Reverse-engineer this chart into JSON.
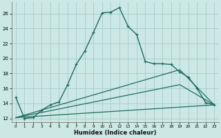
{
  "xlabel": "Humidex (Indice chaleur)",
  "background_color": "#cce8e4",
  "grid_color": "#aacfcb",
  "line_color": "#1e6b60",
  "xlim": [
    -0.5,
    23.5
  ],
  "ylim": [
    11.5,
    27.5
  ],
  "yticks": [
    12,
    14,
    16,
    18,
    20,
    22,
    24,
    26
  ],
  "xticks": [
    0,
    1,
    2,
    3,
    4,
    5,
    6,
    7,
    8,
    9,
    10,
    11,
    12,
    13,
    14,
    15,
    16,
    17,
    18,
    19,
    20,
    21,
    22,
    23
  ],
  "main_line": {
    "x": [
      0,
      1,
      2,
      3,
      4,
      5,
      6,
      7,
      8,
      9,
      10,
      11,
      12,
      13,
      14,
      15,
      16,
      17,
      18,
      19,
      20,
      21,
      22,
      23
    ],
    "y": [
      14.8,
      12.0,
      12.1,
      13.1,
      13.8,
      14.2,
      16.5,
      19.2,
      21.0,
      23.5,
      26.1,
      26.2,
      26.8,
      24.3,
      23.2,
      19.6,
      19.3,
      19.3,
      19.2,
      18.2,
      17.5,
      16.0,
      14.1,
      13.8
    ]
  },
  "line_top": {
    "x": [
      0,
      19,
      23
    ],
    "y": [
      12.1,
      18.5,
      13.8
    ]
  },
  "line_mid": {
    "x": [
      0,
      19,
      23
    ],
    "y": [
      12.1,
      16.5,
      13.8
    ]
  },
  "line_bot": {
    "x": [
      0,
      23
    ],
    "y": [
      12.1,
      13.8
    ]
  }
}
